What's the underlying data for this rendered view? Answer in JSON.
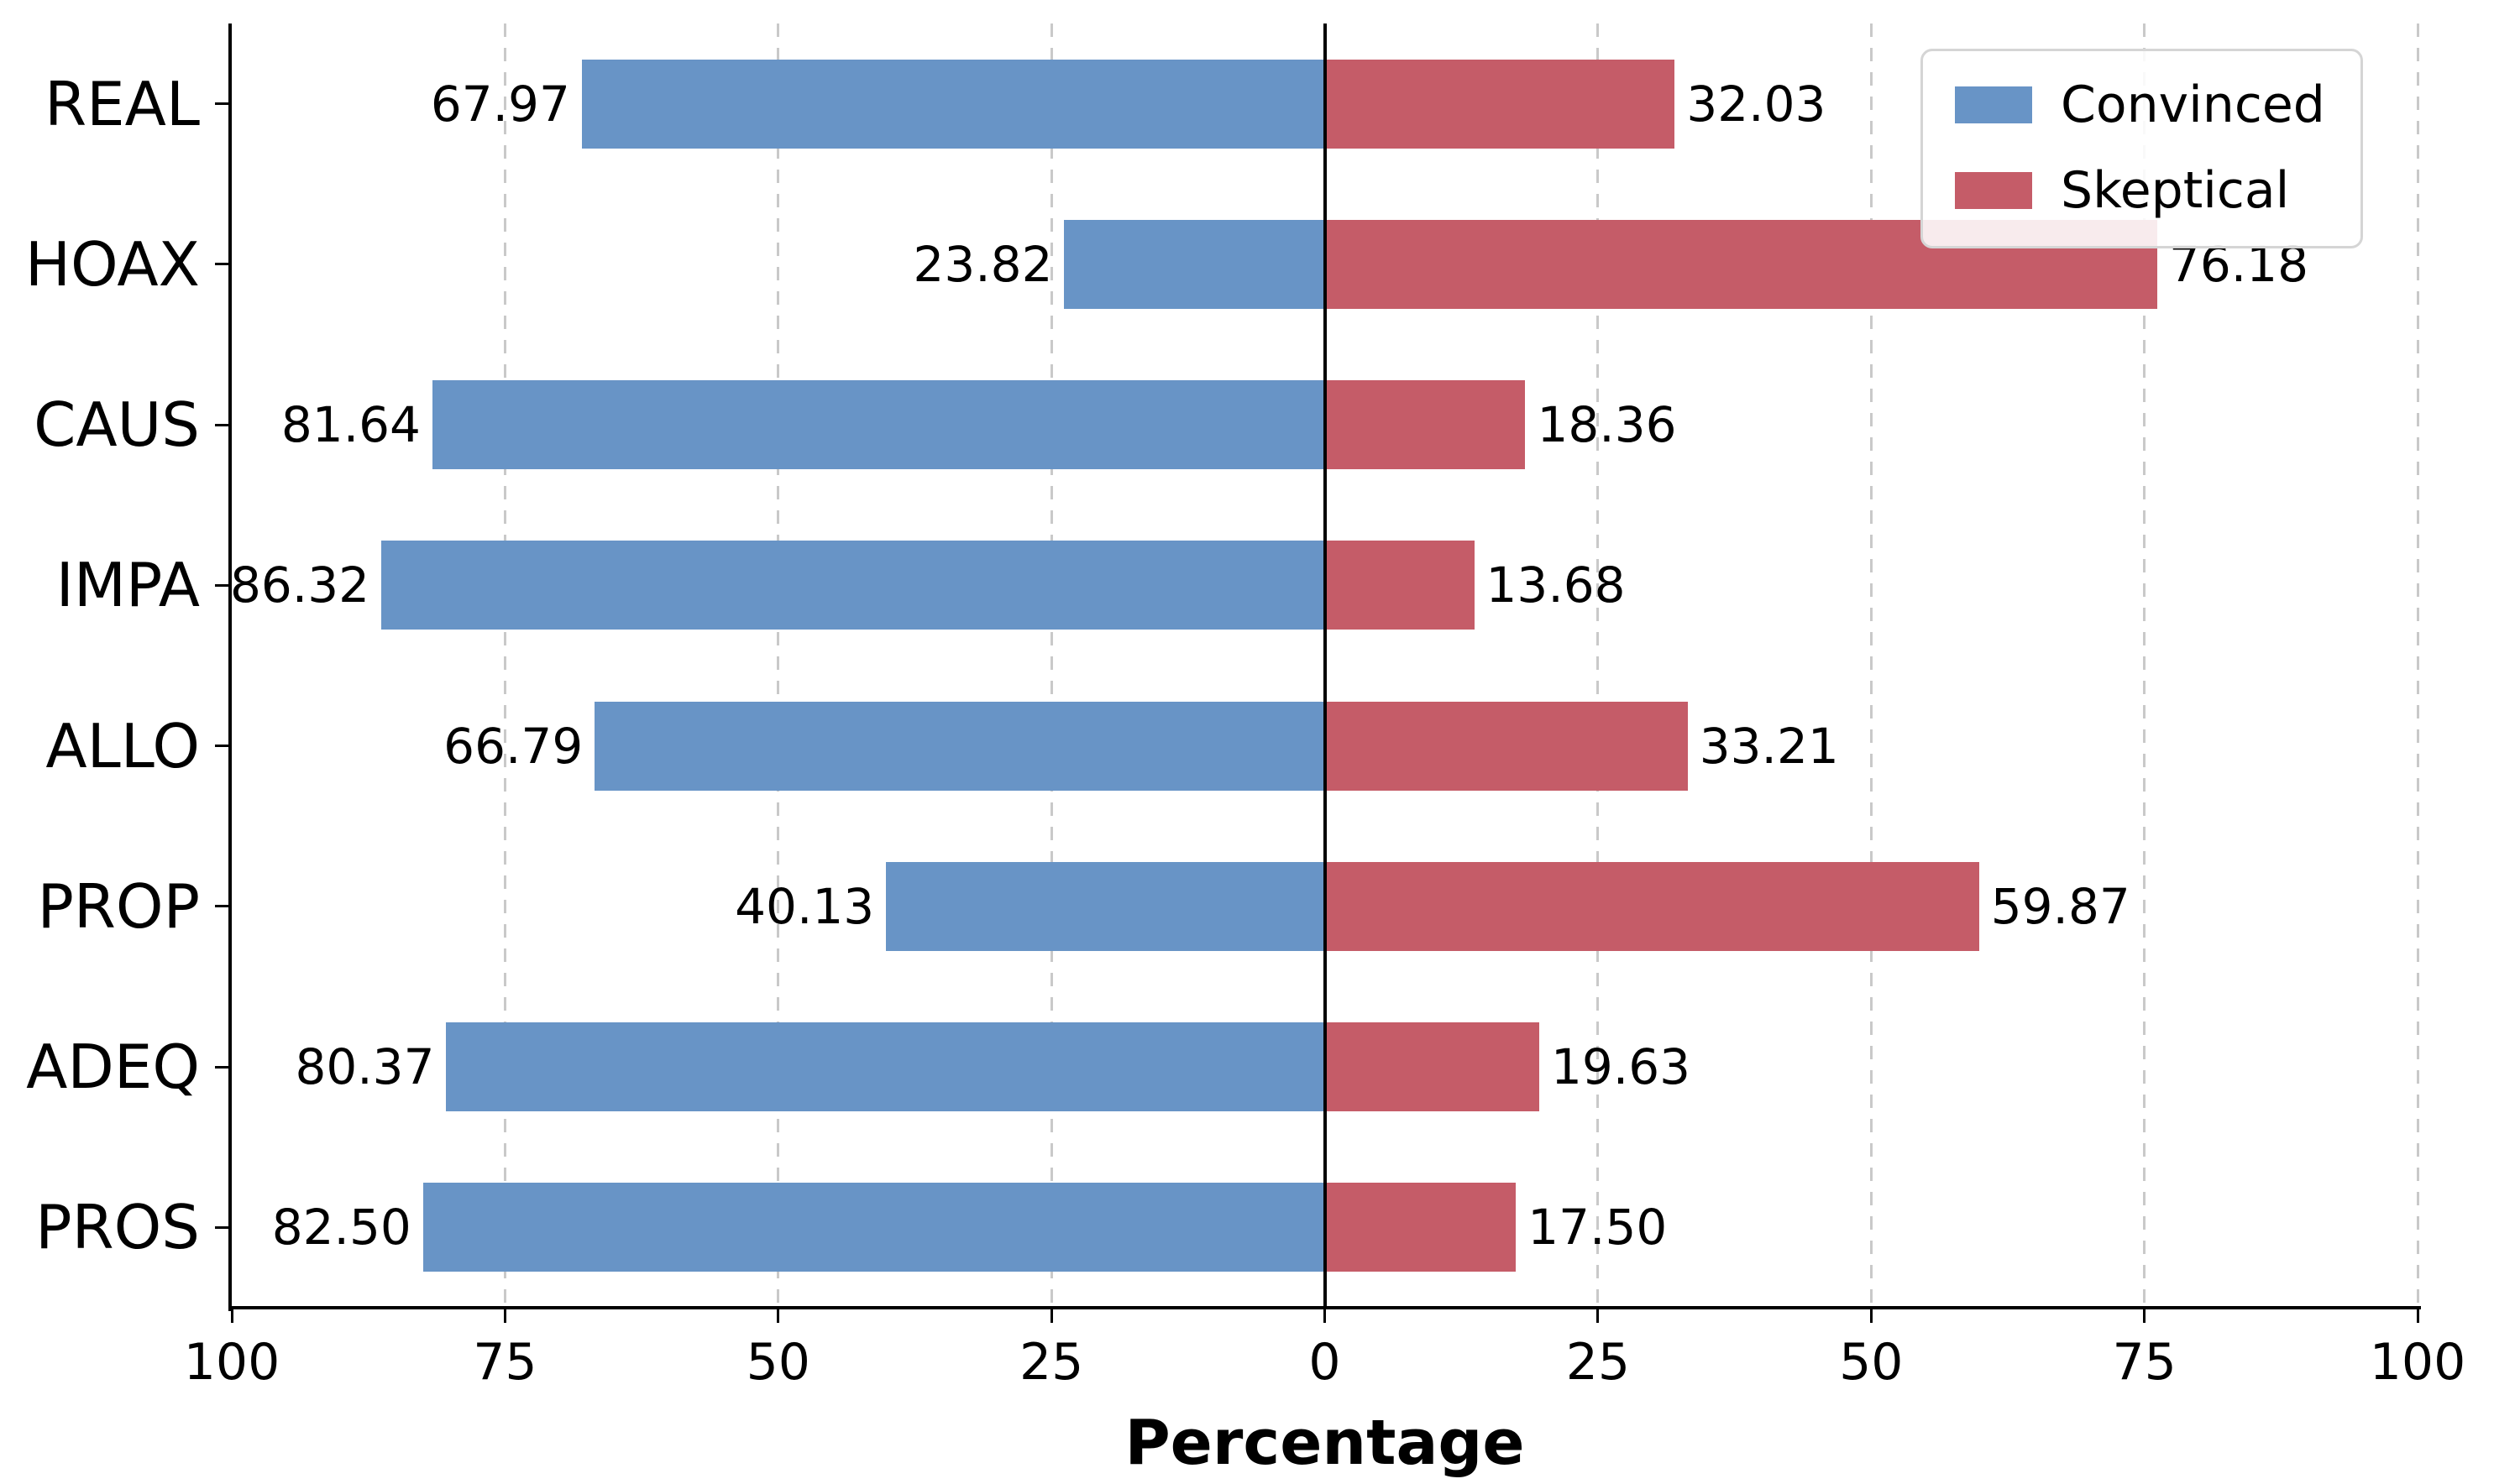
{
  "chart_data": {
    "type": "bar",
    "subtype": "diverging-horizontal",
    "title": "",
    "xlabel": "Percentage",
    "xlim": [
      -100,
      100
    ],
    "x_tick_values": [
      -100,
      -75,
      -50,
      -25,
      0,
      25,
      50,
      75,
      100
    ],
    "x_tick_labels": [
      "100",
      "75",
      "50",
      "25",
      "0",
      "25",
      "50",
      "75",
      "100"
    ],
    "gridline_values": [
      -75,
      -50,
      -25,
      25,
      50,
      75,
      100
    ],
    "grid": {
      "axis": "x",
      "style": "dashed",
      "color": "#c9c9c9",
      "interval": 25
    },
    "zero_line_color": "#000000",
    "categories": [
      "REAL",
      "HOAX",
      "CAUS",
      "IMPA",
      "ALLO",
      "PROP",
      "ADEQ",
      "PROS"
    ],
    "series": [
      {
        "name": "Convinced",
        "side": "left",
        "color": "#6894C6",
        "values": [
          67.97,
          23.82,
          81.64,
          86.32,
          66.79,
          40.13,
          80.37,
          82.5
        ],
        "labels": [
          "67.97",
          "23.82",
          "81.64",
          "86.32",
          "66.79",
          "40.13",
          "80.37",
          "82.50"
        ]
      },
      {
        "name": "Skeptical",
        "side": "right",
        "color": "#C55C68",
        "values": [
          32.03,
          76.18,
          18.36,
          13.68,
          33.21,
          59.87,
          19.63,
          17.5
        ],
        "labels": [
          "32.03",
          "76.18",
          "18.36",
          "13.68",
          "33.21",
          "59.87",
          "19.63",
          "17.50"
        ]
      }
    ],
    "legend": {
      "position": "upper-right",
      "entries": [
        "Convinced",
        "Skeptical"
      ]
    }
  }
}
